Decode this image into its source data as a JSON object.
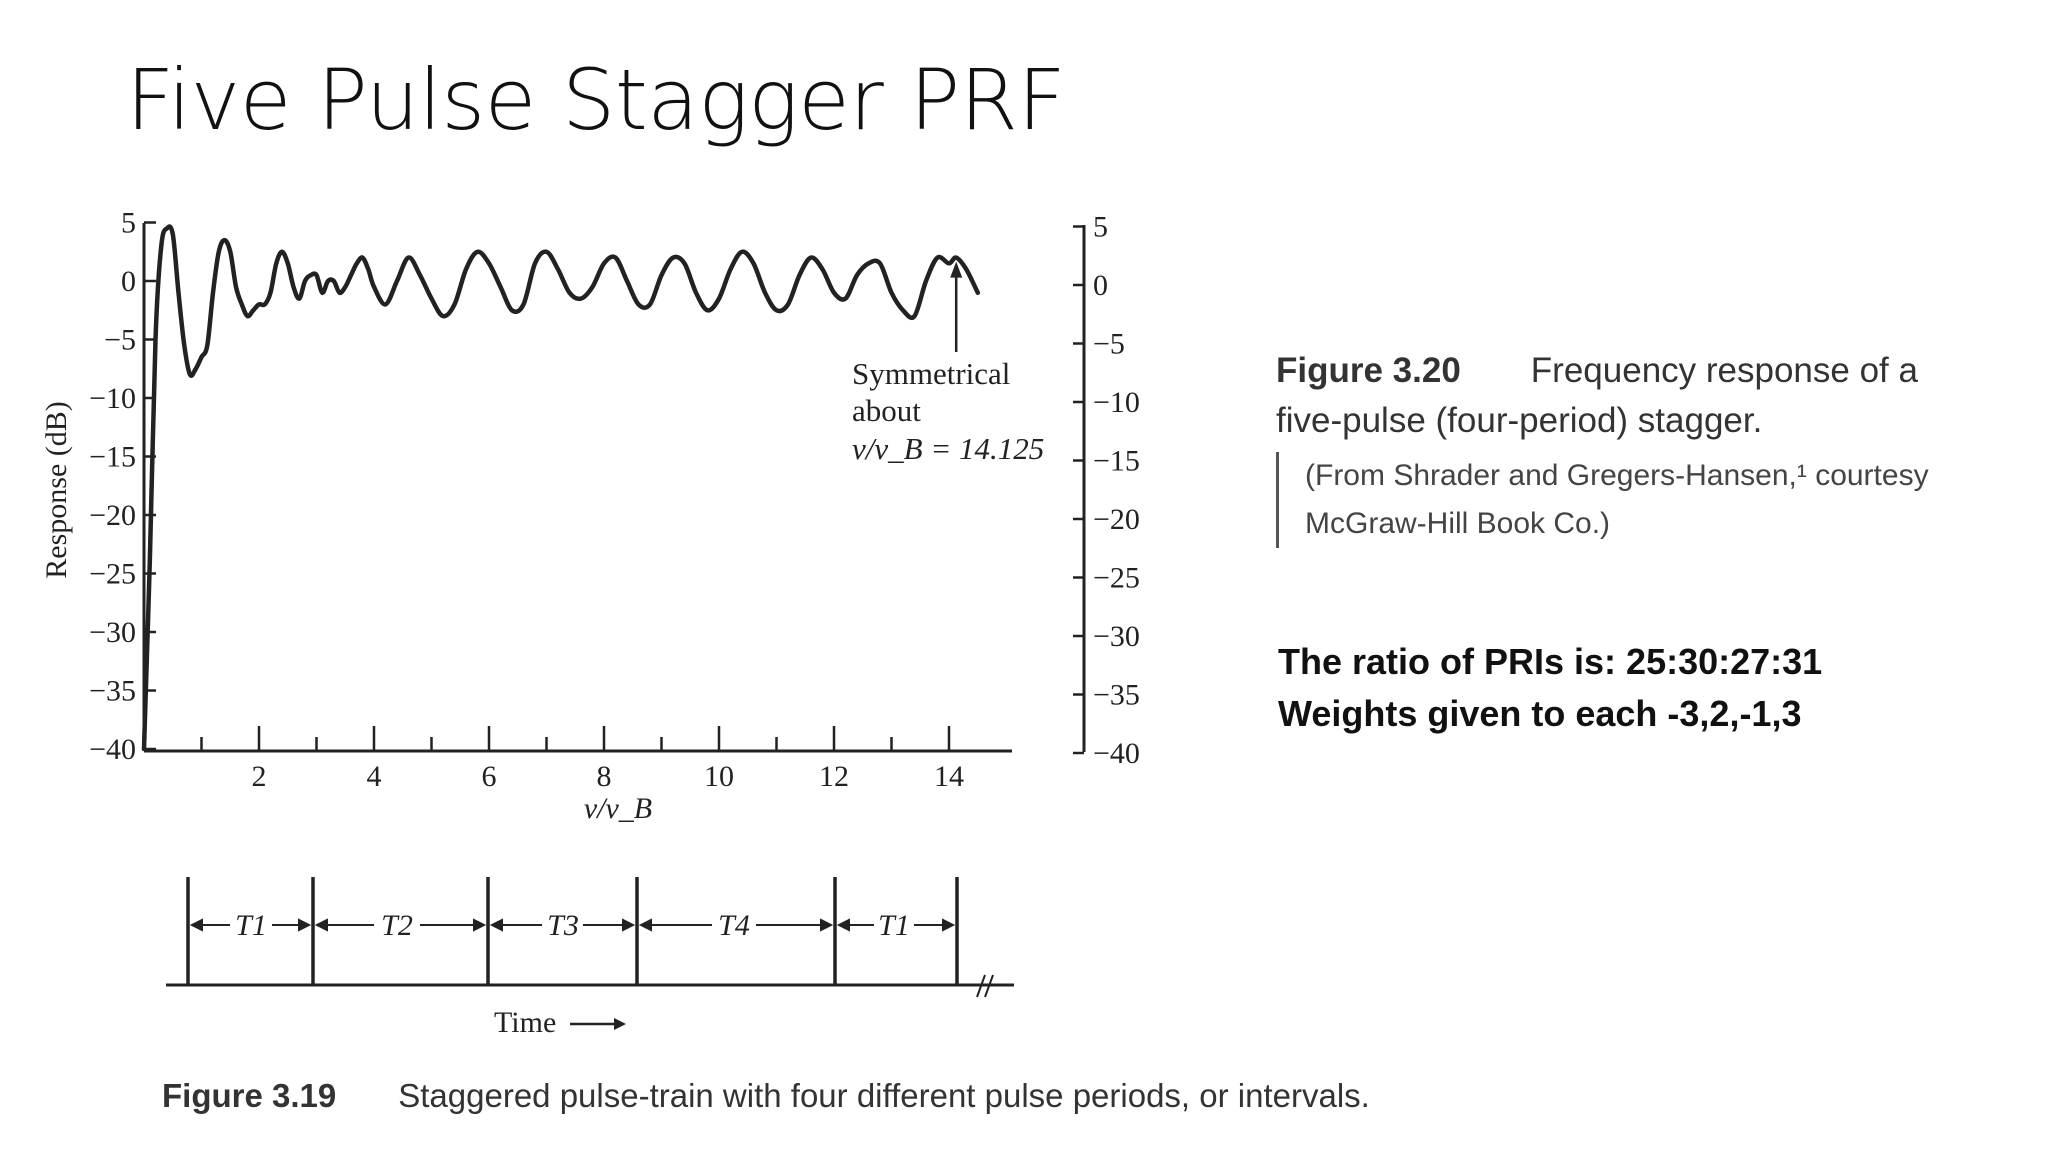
{
  "slide": {
    "title": "Five Pulse Stagger PRF"
  },
  "chart_data": {
    "type": "line",
    "xlabel": "ν/ν_B",
    "ylabel": "Response (dB)",
    "xlim": [
      0,
      15
    ],
    "ylim": [
      -40,
      5
    ],
    "x_ticks": [
      2,
      4,
      6,
      8,
      10,
      12,
      14
    ],
    "y_ticks": [
      5,
      0,
      -5,
      -10,
      -15,
      -20,
      -25,
      -30,
      -35,
      -40
    ],
    "right_axis_ticks": [
      5,
      0,
      -5,
      -10,
      -15,
      -20,
      -25,
      -30,
      -35,
      -40
    ],
    "annotation": {
      "lines": [
        "Symmetrical",
        "about",
        "ν/ν_B = 14.125"
      ],
      "arrow_to": {
        "x": 14.125,
        "y": 2
      }
    },
    "series": [
      {
        "x": [
          0.0,
          0.1,
          0.2,
          0.3,
          0.4,
          0.5,
          0.6,
          0.7,
          0.8,
          0.9,
          1.0,
          1.1,
          1.2,
          1.3,
          1.4,
          1.5,
          1.6,
          1.7,
          1.8,
          1.9,
          2.0,
          2.1,
          2.2,
          2.3,
          2.4,
          2.5,
          2.6,
          2.7,
          2.8,
          2.9,
          3.0,
          3.1,
          3.2,
          3.3,
          3.4,
          3.5,
          3.6,
          3.7,
          3.8,
          3.9,
          4.0,
          4.2,
          4.4,
          4.6,
          4.8,
          5.0,
          5.2,
          5.4,
          5.6,
          5.8,
          6.0,
          6.2,
          6.4,
          6.6,
          6.8,
          7.0,
          7.2,
          7.4,
          7.6,
          7.8,
          8.0,
          8.2,
          8.4,
          8.6,
          8.8,
          9.0,
          9.2,
          9.4,
          9.6,
          9.8,
          10.0,
          10.2,
          10.4,
          10.6,
          10.8,
          11.0,
          11.2,
          11.4,
          11.6,
          11.8,
          12.0,
          12.2,
          12.4,
          12.6,
          12.8,
          13.0,
          13.2,
          13.4,
          13.6,
          13.8,
          14.0,
          14.125,
          14.3,
          14.5
        ],
        "y": [
          -40.0,
          -24.0,
          -5.0,
          3.0,
          4.5,
          4.0,
          -1.0,
          -5.5,
          -8.0,
          -7.5,
          -6.5,
          -5.5,
          -1.0,
          2.5,
          3.5,
          2.5,
          -0.5,
          -2.0,
          -3.0,
          -2.5,
          -2.0,
          -2.0,
          -1.0,
          1.5,
          2.5,
          1.5,
          -0.5,
          -1.5,
          0.0,
          0.5,
          0.5,
          -1.0,
          0.0,
          0.0,
          -1.0,
          -0.5,
          0.5,
          1.5,
          2.0,
          1.0,
          -0.5,
          -2.0,
          0.0,
          2.0,
          0.5,
          -1.5,
          -3.0,
          -2.0,
          1.0,
          2.5,
          1.5,
          -0.5,
          -2.5,
          -2.0,
          1.5,
          2.5,
          1.0,
          -1.0,
          -1.5,
          -0.5,
          1.5,
          2.0,
          0.0,
          -2.0,
          -2.0,
          0.5,
          2.0,
          1.5,
          -1.0,
          -2.5,
          -1.5,
          1.0,
          2.5,
          1.5,
          -1.0,
          -2.5,
          -2.0,
          0.5,
          2.0,
          1.0,
          -1.0,
          -1.5,
          0.5,
          1.5,
          1.5,
          -1.0,
          -2.5,
          -3.0,
          0.0,
          2.0,
          1.5,
          2.0,
          1.0,
          -1.0
        ]
      }
    ]
  },
  "figure_320": {
    "label": "Figure 3.20",
    "caption_part1": "Frequency response of a",
    "caption_part2": "five-pulse (four-period) stagger.",
    "source_line1": "(From Shrader and Gregers-Hansen,¹ courtesy",
    "source_line2": "McGraw-Hill Book Co.)"
  },
  "notes": {
    "line1": "The ratio of PRIs is: 25:30:27:31",
    "line2": "Weights given to each -3,2,-1,3"
  },
  "pulse_train": {
    "interval_labels": [
      "T1",
      "T2",
      "T3",
      "T4",
      "T1"
    ],
    "time_label": "Time"
  },
  "figure_319": {
    "label": "Figure 3.19",
    "caption": "Staggered pulse-train with four different pulse periods, or intervals."
  }
}
